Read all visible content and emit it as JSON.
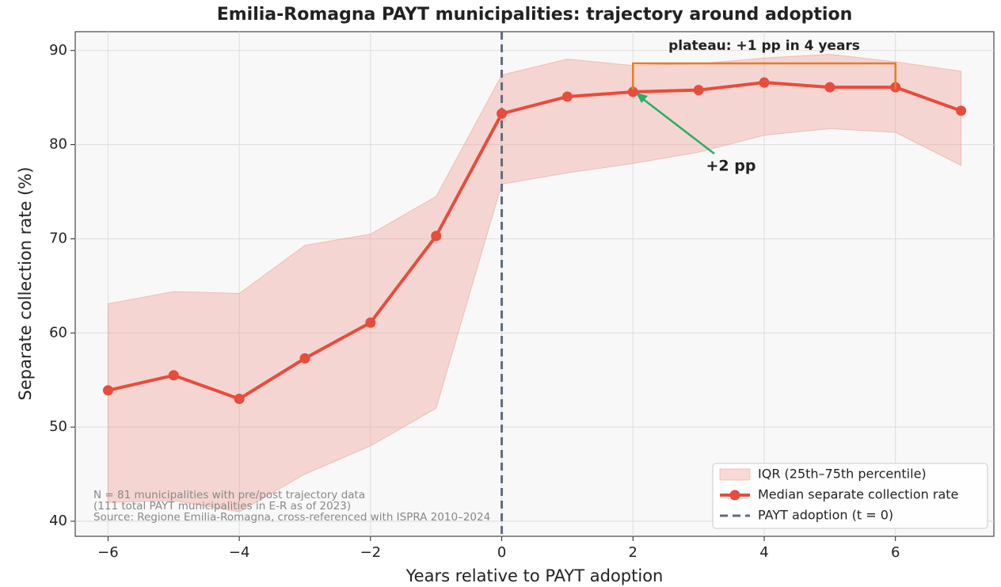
{
  "chart_data": {
    "type": "line",
    "title": "Emilia-Romagna PAYT municipalities: trajectory around adoption",
    "xlabel": "Years relative to PAYT adoption",
    "ylabel": "Separate collection rate (%)",
    "x": [
      -6,
      -5,
      -4,
      -3,
      -2,
      -1,
      0,
      1,
      2,
      3,
      4,
      5,
      6,
      7
    ],
    "series": [
      {
        "name": "Median separate collection rate",
        "color": "#e74c3c",
        "values": [
          53.9,
          55.5,
          53.0,
          57.3,
          61.1,
          70.3,
          83.3,
          85.1,
          85.6,
          85.8,
          86.6,
          86.1,
          86.1,
          83.6
        ]
      }
    ],
    "band": {
      "name": "IQR (25th–75th percentile)",
      "color": "#f1948a",
      "upper": [
        63.1,
        64.4,
        64.2,
        69.3,
        70.5,
        74.5,
        87.4,
        89.1,
        88.4,
        88.6,
        89.2,
        89.6,
        88.8,
        87.8
      ],
      "lower": [
        42.0,
        42.2,
        41.0,
        45.0,
        48.0,
        52.0,
        75.8,
        77.0,
        78.0,
        79.2,
        81.0,
        81.7,
        81.3,
        77.8
      ]
    },
    "vline": {
      "x": 0,
      "name": "PAYT adoption (t = 0)",
      "color": "#5d6d7e"
    },
    "annotations": [
      {
        "text": "plateau: +1 pp in 4 years",
        "color": "#e67e22"
      },
      {
        "text": "+2 pp",
        "color": "#27ae60"
      }
    ],
    "footnote": [
      "N = 81 municipalities with pre/post trajectory data",
      "(111 total PAYT municipalities in E-R as of 2023)",
      "Source: Regione Emilia-Romagna, cross-referenced with ISPRA 2010–2024"
    ],
    "xlim": [
      -6.5,
      7.5
    ],
    "ylim": [
      38.4,
      92
    ],
    "xticks": [
      {
        "value": -6,
        "label": "−6"
      },
      {
        "value": -4,
        "label": "−4"
      },
      {
        "value": -2,
        "label": "−2"
      },
      0,
      2,
      4,
      6
    ],
    "yticks": [
      40,
      50,
      60,
      70,
      80,
      90
    ],
    "grid": true,
    "legend": "lower right"
  }
}
